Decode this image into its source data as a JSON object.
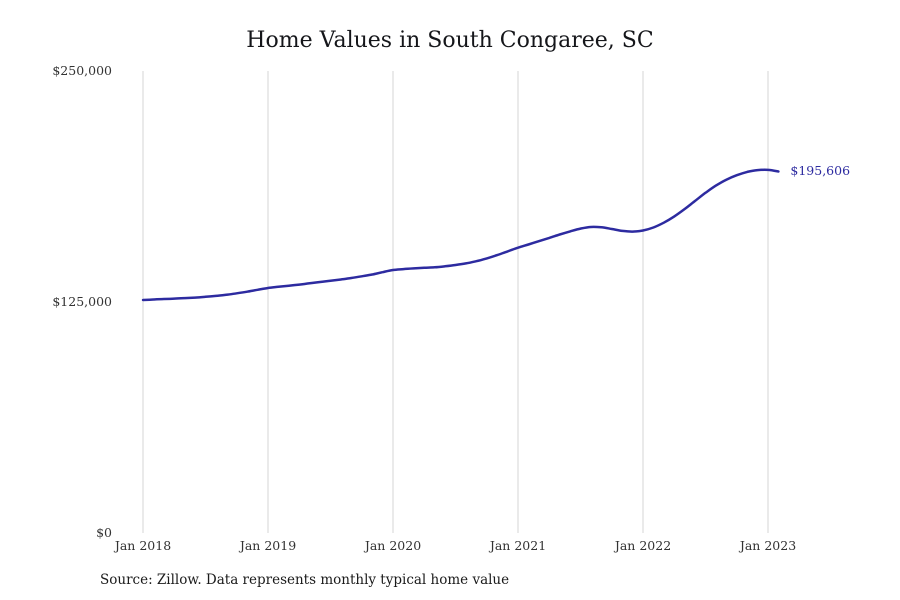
{
  "title": "Home Values in South Congaree, SC",
  "source_note": "Source: Zillow. Data represents monthly typical home value",
  "colors": {
    "line": "#2d2ba0",
    "annotation": "#2d2ba0",
    "grid": "#d6d6d6",
    "tick_text": "#333333",
    "title_text": "#15161a"
  },
  "chart_data": {
    "type": "line",
    "title": "Home Values in South Congaree, SC",
    "xlabel": "",
    "ylabel": "",
    "x_range": [
      "2018-01",
      "2023-02"
    ],
    "x_tick_labels": [
      "Jan 2018",
      "Jan 2019",
      "Jan 2020",
      "Jan 2021",
      "Jan 2022",
      "Jan 2023"
    ],
    "y_ticks": [
      {
        "label": "$0",
        "value": 0
      },
      {
        "label": "$125,000",
        "value": 125000
      },
      {
        "label": "$250,000",
        "value": 250000
      }
    ],
    "ylim": [
      0,
      250000
    ],
    "grid": "vertical-only",
    "legend": "none",
    "annotation": {
      "text": "$195,606",
      "value": 195606,
      "position": "line-end"
    },
    "series": [
      {
        "name": "Monthly typical home value",
        "values": [
          126100,
          126350,
          126600,
          126850,
          127100,
          127400,
          127800,
          128300,
          128900,
          129700,
          130600,
          131600,
          132600,
          133200,
          133800,
          134400,
          135100,
          135800,
          136500,
          137200,
          138000,
          138900,
          139900,
          141100,
          142300,
          142800,
          143200,
          143500,
          143800,
          144300,
          145000,
          145900,
          147100,
          148600,
          150400,
          152400,
          154400,
          156100,
          157900,
          159700,
          161500,
          163200,
          164700,
          165600,
          165400,
          164500,
          163500,
          163100,
          163700,
          165300,
          167900,
          171300,
          175300,
          179700,
          184100,
          188000,
          191200,
          193600,
          195400,
          196400,
          196500,
          195606
        ]
      }
    ]
  }
}
